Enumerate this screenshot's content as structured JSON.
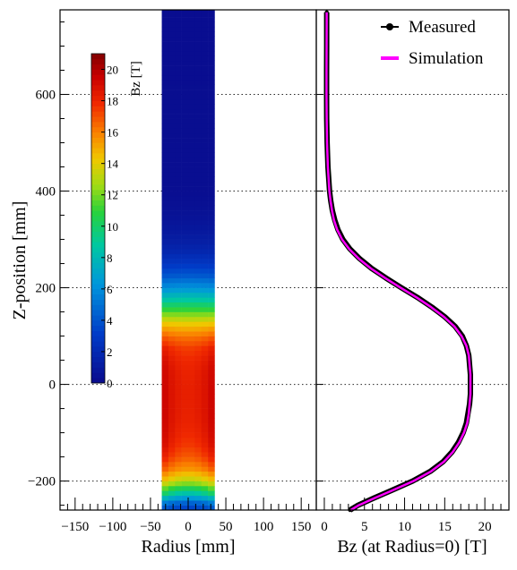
{
  "chart_data": [
    {
      "type": "heatmap",
      "xlabel": "Radius [mm]",
      "ylabel": "Z-position [mm]",
      "xlim": [
        -170,
        170
      ],
      "ylim": [
        -260,
        775
      ],
      "x_ticks": [
        -150,
        -100,
        -50,
        0,
        50,
        100,
        150
      ],
      "x_tick_labels": [
        "−150",
        "−100",
        "−50",
        "0",
        "50",
        "100",
        "150"
      ],
      "y_ticks": [
        -200,
        0,
        200,
        400,
        600
      ],
      "y_tick_labels": [
        "−200",
        "0",
        "200",
        "400",
        "600"
      ],
      "grid": "horizontal dotted",
      "data_extent": {
        "r": [
          -35,
          35
        ],
        "z": [
          -260,
          775
        ]
      },
      "colorbar": {
        "label": "Bz [T]",
        "range": [
          0,
          21
        ],
        "ticks": [
          0,
          2,
          4,
          6,
          8,
          10,
          12,
          14,
          16,
          18,
          20
        ],
        "tick_labels": [
          "0",
          "2",
          "4",
          "6",
          "8",
          "10",
          "12",
          "14",
          "16",
          "18",
          "20"
        ],
        "palette": "rainbow"
      },
      "z_samples": [
        -250,
        -225,
        -200,
        -175,
        -150,
        -125,
        -100,
        -75,
        -50,
        -25,
        0,
        25,
        50,
        75,
        100,
        125,
        150,
        175,
        200,
        225,
        250,
        275,
        300,
        325,
        350,
        400,
        775
      ],
      "bz_center": [
        3.5,
        8.5,
        13.0,
        15.5,
        16.8,
        17.5,
        17.9,
        18.1,
        18.2,
        18.2,
        18.2,
        18.1,
        17.9,
        17.4,
        16.2,
        14.2,
        11.6,
        8.8,
        6.2,
        4.2,
        2.8,
        1.8,
        1.2,
        0.8,
        0.5,
        0.25,
        0.2
      ],
      "bz_edge": [
        4.5,
        10.5,
        14.5,
        17.0,
        18.5,
        19.2,
        19.5,
        19.6,
        19.6,
        19.6,
        19.6,
        19.5,
        19.2,
        18.4,
        16.8,
        14.5,
        11.6,
        8.6,
        6.0,
        4.0,
        2.7,
        1.8,
        1.2,
        0.8,
        0.5,
        0.25,
        0.2
      ]
    },
    {
      "type": "line",
      "xlabel": "Bz (at Radius=0) [T]",
      "xlim": [
        -1,
        23
      ],
      "ylim": [
        -260,
        775
      ],
      "x_ticks": [
        0,
        5,
        10,
        15,
        20
      ],
      "x_tick_labels": [
        "0",
        "5",
        "10",
        "15",
        "20"
      ],
      "grid": "horizontal dotted",
      "legend": "top-right",
      "series": [
        {
          "name": "Measured",
          "color": "#000000",
          "marker": "circle",
          "z": [
            -260,
            -250,
            -235,
            -220,
            -200,
            -180,
            -160,
            -140,
            -120,
            -100,
            -80,
            -60,
            -40,
            -20,
            0,
            20,
            40,
            60,
            80,
            100,
            120,
            140,
            160,
            180,
            200,
            220,
            240,
            260,
            280,
            300,
            320,
            340,
            360,
            380,
            400,
            450,
            500,
            550,
            600,
            650,
            700,
            750,
            770
          ],
          "bz": [
            3.2,
            4.2,
            6.2,
            8.3,
            11.0,
            13.2,
            14.8,
            15.9,
            16.7,
            17.3,
            17.7,
            17.9,
            18.1,
            18.2,
            18.2,
            18.2,
            18.1,
            18.0,
            17.7,
            17.2,
            16.3,
            15.0,
            13.4,
            11.6,
            9.6,
            7.7,
            5.9,
            4.4,
            3.2,
            2.3,
            1.7,
            1.3,
            1.0,
            0.8,
            0.65,
            0.45,
            0.35,
            0.3,
            0.28,
            0.28,
            0.3,
            0.3,
            0.3
          ]
        },
        {
          "name": "Simulation",
          "color": "#ff00ff",
          "z": [
            -260,
            -250,
            -235,
            -220,
            -200,
            -180,
            -160,
            -140,
            -120,
            -100,
            -80,
            -60,
            -40,
            -20,
            0,
            20,
            40,
            60,
            80,
            100,
            120,
            140,
            160,
            180,
            200,
            220,
            240,
            260,
            280,
            300,
            320,
            340,
            360,
            380,
            400,
            450,
            500,
            550,
            600,
            650,
            700,
            750,
            770
          ],
          "bz": [
            3.3,
            4.3,
            6.3,
            8.4,
            11.1,
            13.3,
            14.9,
            16.0,
            16.8,
            17.4,
            17.8,
            18.0,
            18.1,
            18.2,
            18.2,
            18.2,
            18.1,
            18.0,
            17.7,
            17.1,
            16.2,
            14.9,
            13.3,
            11.5,
            9.5,
            7.6,
            5.8,
            4.3,
            3.1,
            2.2,
            1.6,
            1.2,
            0.95,
            0.78,
            0.63,
            0.44,
            0.34,
            0.29,
            0.27,
            0.27,
            0.28,
            0.29,
            0.29
          ]
        }
      ]
    }
  ]
}
